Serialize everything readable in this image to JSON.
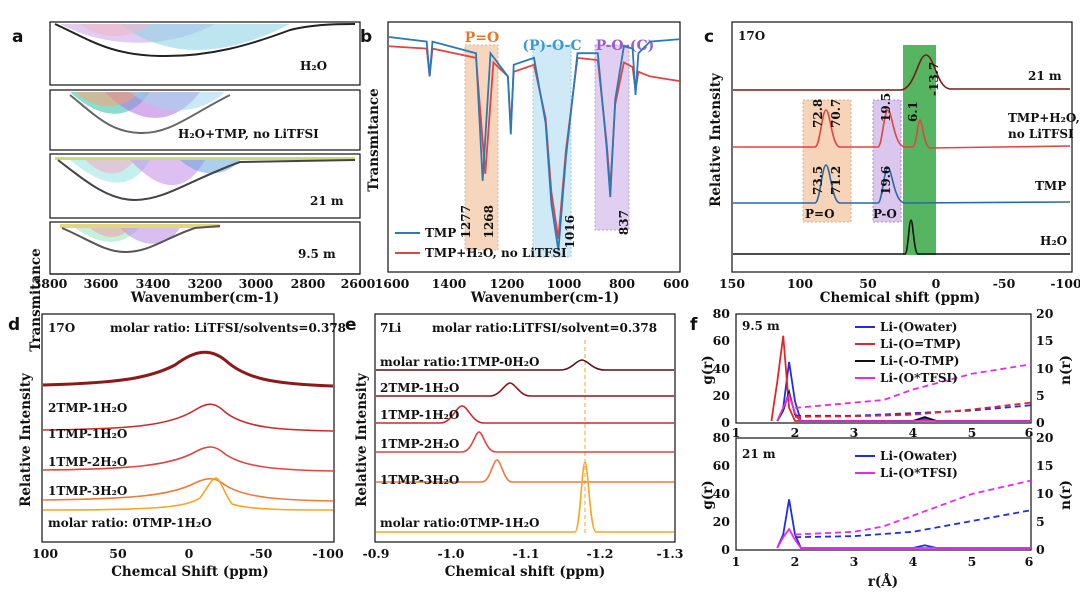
{
  "figure": {
    "a": {
      "letter": "a",
      "ylabel": "Transmitance",
      "xlabel": "Wavenumber(cm-1)",
      "xticks": [
        "3800",
        "3600",
        "3400",
        "3200",
        "3000",
        "2800",
        "2600"
      ],
      "subpanels": [
        {
          "label": "H₂O"
        },
        {
          "label": "H₂O+TMP, no LiTFSI"
        },
        {
          "label": "21 m"
        },
        {
          "label": "9.5 m"
        }
      ]
    },
    "b": {
      "letter": "b",
      "ylabel": "Transmitance",
      "xlabel": "Wavenumber(cm-1)",
      "xticks": [
        "1600",
        "1400",
        "1200",
        "1000",
        "800",
        "600"
      ],
      "bands": [
        "P=O",
        "(P)-O-C",
        "P-O-(C)"
      ],
      "peaks": [
        "1277",
        "1268",
        "1016",
        "837"
      ],
      "legend": [
        "TMP",
        "TMP+H₂O, no LiTFSI"
      ],
      "colors": {
        "tmp": "#2a7ab8",
        "mix": "#e0453f"
      }
    },
    "c": {
      "letter": "c",
      "nucleus": "17O",
      "ylabel": "Relative Intensity",
      "xlabel": "Chemical shift (ppm)",
      "xticks": [
        "150",
        "100",
        "50",
        "0",
        "-50",
        "-100"
      ],
      "traces": [
        "21 m",
        "TMP+H₂O,\nno LiTFSI",
        "TMP",
        "H₂O"
      ],
      "peaks": [
        "-13.7",
        "72.8",
        "70.7",
        "19.5",
        "6.1",
        "73.5",
        "71.2",
        "19.6"
      ],
      "bands": [
        "P=O",
        "P-O"
      ]
    },
    "d": {
      "letter": "d",
      "nucleus": "17O",
      "note": "molar ratio: LiTFSI/solvents=0.378",
      "ylabel": "Relative Intensity",
      "xlabel": "Chemcal Shift (ppm)",
      "xticks": [
        "100",
        "50",
        "0",
        "-50",
        "-100"
      ],
      "traces": [
        "2TMP-1H₂O",
        "1TMP-1H₂O",
        "1TMP-2H₂O",
        "1TMP-3H₂O",
        "molar ratio: 0TMP-1H₂O"
      ]
    },
    "e": {
      "letter": "e",
      "nucleus": "7Li",
      "note": "molar ratio:LiTFSI/solvent=0.378",
      "ylabel": "Relative Intensity",
      "xlabel": "Chemical shift (ppm)",
      "xticks": [
        "-0.9",
        "-1.0",
        "-1.1",
        "-1.2",
        "-1.3"
      ],
      "traces": [
        "molar ratio:1TMP-0H₂O",
        "2TMP-1H₂O",
        "1TMP-1H₂O",
        "1TMP-2H₂O",
        "1TMP-3H₂O",
        "molar ratio:0TMP-1H₂O"
      ]
    },
    "f": {
      "letter": "f",
      "xlabel": "r(Å)",
      "ylabel_left": "g(r)",
      "ylabel_right": "n(r)",
      "xticks": [
        "1",
        "2",
        "3",
        "4",
        "5",
        "6"
      ],
      "top": {
        "label": "9.5 m",
        "yticks_left": [
          "0",
          "20",
          "40",
          "60",
          "80"
        ],
        "yticks_right": [
          "0",
          "5",
          "10",
          "15",
          "20"
        ],
        "legend": [
          "Li-(Owater)",
          "Li-(O=TMP)",
          "Li-(-O-TMP)",
          "Li-(O*TFSI)"
        ]
      },
      "bottom": {
        "label": "21 m",
        "yticks_left": [
          "0",
          "20",
          "40",
          "60",
          "80"
        ],
        "yticks_right": [
          "0",
          "5",
          "10",
          "15",
          "20"
        ],
        "legend": [
          "Li-(Owater)",
          "Li-(O*TFSI)"
        ]
      }
    }
  },
  "chart_data": [
    {
      "type": "line",
      "panel": "b",
      "title": "",
      "xlabel": "Wavenumber(cm-1)",
      "ylabel": "Transmitance",
      "xlim": [
        1600,
        600
      ],
      "series": [
        {
          "name": "TMP",
          "x": [
            1600,
            1470,
            1460,
            1450,
            1300,
            1277,
            1250,
            1190,
            1180,
            1170,
            1100,
            1060,
            1040,
            1016,
            990,
            950,
            880,
            850,
            837,
            820,
            790,
            760,
            750,
            740,
            700,
            600
          ],
          "y": [
            0.97,
            0.95,
            0.8,
            0.95,
            0.9,
            0.35,
            0.9,
            0.8,
            0.55,
            0.85,
            0.88,
            0.6,
            0.25,
            0.05,
            0.45,
            0.9,
            0.9,
            0.5,
            0.28,
            0.7,
            0.93,
            0.92,
            0.72,
            0.9,
            0.95,
            0.96
          ]
        },
        {
          "name": "TMP+H₂O, no LiTFSI",
          "x": [
            1600,
            1470,
            1460,
            1450,
            1300,
            1268,
            1240,
            1190,
            1180,
            1170,
            1100,
            1060,
            1040,
            1016,
            990,
            950,
            880,
            850,
            837,
            820,
            790,
            760,
            750,
            740,
            700,
            600
          ],
          "y": [
            0.93,
            0.92,
            0.8,
            0.92,
            0.88,
            0.38,
            0.86,
            0.8,
            0.58,
            0.82,
            0.85,
            0.62,
            0.3,
            0.1,
            0.48,
            0.88,
            0.87,
            0.52,
            0.32,
            0.68,
            0.86,
            0.84,
            0.74,
            0.82,
            0.8,
            0.78
          ]
        }
      ]
    },
    {
      "type": "line",
      "panel": "f-top",
      "label": "9.5 m",
      "xlabel": "r(Å)",
      "ylabel": "g(r)",
      "xlim": [
        1,
        6
      ],
      "ylim": [
        0,
        80
      ],
      "ylim_right": [
        0,
        20
      ],
      "series": [
        {
          "name": "Li-(Owater)",
          "x": [
            1.7,
            1.8,
            1.9,
            2.0,
            2.1,
            4.0,
            4.2,
            4.4,
            6
          ],
          "y": [
            0,
            10,
            45,
            15,
            0,
            0,
            2,
            0,
            0
          ]
        },
        {
          "name": "Li-(O=TMP)",
          "x": [
            1.6,
            1.7,
            1.8,
            1.9,
            2.0,
            4.0,
            4.2,
            4.4,
            6
          ],
          "y": [
            0,
            30,
            65,
            10,
            0,
            0,
            1,
            0,
            0
          ]
        },
        {
          "name": "Li-(-O-TMP)",
          "x": [
            1.7,
            1.8,
            1.9,
            2.0,
            2.1,
            4.0,
            4.2,
            4.4,
            6
          ],
          "y": [
            0,
            8,
            22,
            5,
            0,
            0,
            3,
            0,
            0
          ]
        },
        {
          "name": "Li-(O*TFSI)",
          "x": [
            1.7,
            1.8,
            1.9,
            2.0,
            2.1,
            6
          ],
          "y": [
            0,
            10,
            20,
            6,
            0,
            0
          ]
        },
        {
          "name": "n(r) Li-(Owater)",
          "axis": "right",
          "x": [
            2,
            3,
            4,
            5,
            6
          ],
          "y": [
            1,
            1,
            1.5,
            2,
            3
          ]
        },
        {
          "name": "n(r) Li-(O=TMP)",
          "axis": "right",
          "x": [
            2,
            3,
            4,
            5,
            6
          ],
          "y": [
            0.8,
            0.9,
            1.2,
            2.2,
            3.5
          ]
        },
        {
          "name": "n(r) Li-(O*TFSI)",
          "axis": "right",
          "x": [
            2,
            2.5,
            3,
            3.5,
            4,
            5,
            6
          ],
          "y": [
            2.5,
            3,
            3.5,
            4,
            6,
            9,
            10.8
          ]
        }
      ]
    },
    {
      "type": "line",
      "panel": "f-bottom",
      "label": "21 m",
      "xlabel": "r(Å)",
      "ylabel": "g(r)",
      "xlim": [
        1,
        6
      ],
      "ylim": [
        0,
        80
      ],
      "ylim_right": [
        0,
        20
      ],
      "series": [
        {
          "name": "Li-(Owater)",
          "x": [
            1.7,
            1.8,
            1.9,
            2.0,
            2.1,
            4.0,
            4.2,
            4.4,
            6
          ],
          "y": [
            0,
            10,
            36,
            10,
            0,
            0,
            2,
            0,
            0
          ]
        },
        {
          "name": "Li-(O*TFSI)",
          "x": [
            1.7,
            1.8,
            1.9,
            2.0,
            2.1,
            6
          ],
          "y": [
            0,
            8,
            14,
            6,
            0,
            0
          ]
        },
        {
          "name": "n(r) Li-(Owater)",
          "axis": "right",
          "x": [
            2,
            3,
            4,
            5,
            6
          ],
          "y": [
            2,
            2.2,
            3,
            5,
            7
          ]
        },
        {
          "name": "n(r) Li-(O*TFSI)",
          "axis": "right",
          "x": [
            2,
            3,
            3.5,
            4,
            5,
            6
          ],
          "y": [
            2.5,
            3,
            4,
            6,
            10,
            12.5
          ]
        }
      ]
    }
  ]
}
